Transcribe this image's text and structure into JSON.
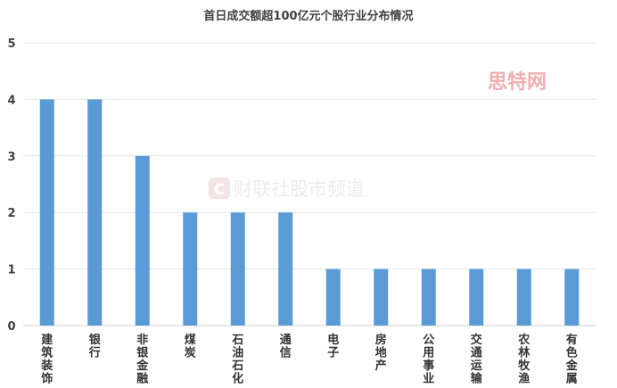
{
  "chart_data": {
    "type": "bar",
    "title": "首日成交额超100亿元个股行业分布情况",
    "categories": [
      "建筑装饰",
      "银行",
      "非银金融",
      "煤炭",
      "石油石化",
      "通信",
      "电子",
      "房地产",
      "公用事业",
      "交通运输",
      "农林牧渔",
      "有色金属"
    ],
    "values": [
      4,
      4,
      3,
      2,
      2,
      2,
      1,
      1,
      1,
      1,
      1,
      1
    ],
    "ylim": [
      0,
      5
    ],
    "yticks": [
      0,
      1,
      2,
      3,
      4,
      5
    ],
    "grid": true,
    "legend": "none",
    "bar_color": "#5b9bd5",
    "xlabel": "",
    "ylabel": ""
  },
  "watermarks": {
    "brand_top": "思特网",
    "brand_center": "财联社股市频道",
    "brand_center_logo": "C"
  }
}
